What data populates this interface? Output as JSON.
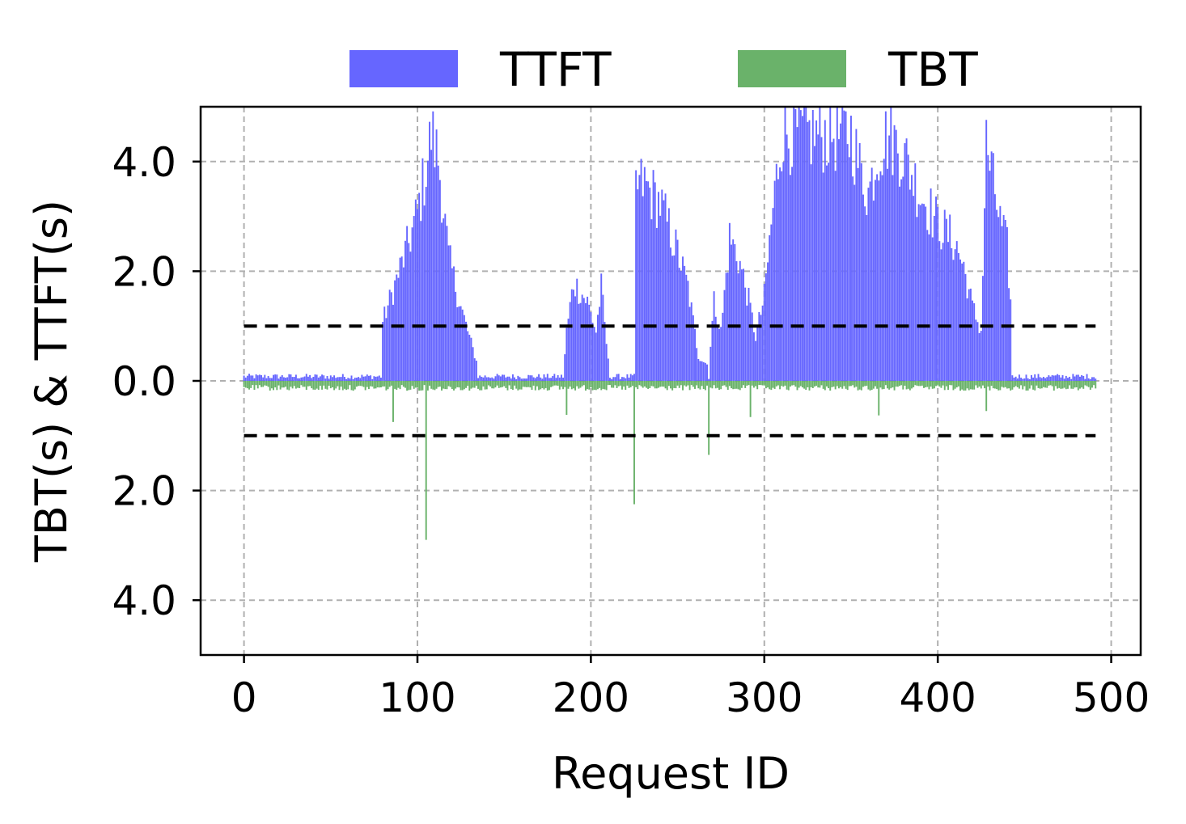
{
  "chart_data": {
    "type": "bar",
    "xlabel": "Request ID",
    "ylabel": "TBT(s) & TTFT(s)",
    "xlim": [
      -25,
      517
    ],
    "ylim": [
      -5,
      5
    ],
    "grid": true,
    "legend_position": "top-center",
    "x_ticks": [
      {
        "value": 0,
        "label": "0"
      },
      {
        "value": 100,
        "label": "100"
      },
      {
        "value": 200,
        "label": "200"
      },
      {
        "value": 300,
        "label": "300"
      },
      {
        "value": 400,
        "label": "400"
      },
      {
        "value": 500,
        "label": "500"
      }
    ],
    "y_ticks": [
      {
        "value": 4,
        "label": "4.0"
      },
      {
        "value": 2,
        "label": "2.0"
      },
      {
        "value": 0,
        "label": "0.0"
      },
      {
        "value": -2,
        "label": "2.0"
      },
      {
        "value": -4,
        "label": "4.0"
      }
    ],
    "reference_lines": [
      1.0,
      -1.0
    ],
    "series": [
      {
        "name": "TTFT",
        "color": "#6666ff",
        "direction": "up",
        "profile": [
          [
            0,
            0.08
          ],
          [
            79,
            0.08
          ],
          [
            80,
            1.2
          ],
          [
            95,
            2.8
          ],
          [
            100,
            3.4
          ],
          [
            105,
            4.3
          ],
          [
            108,
            5.0
          ],
          [
            112,
            4.5
          ],
          [
            118,
            2.5
          ],
          [
            125,
            1.5
          ],
          [
            134,
            0.4
          ],
          [
            136,
            0.07
          ],
          [
            184,
            0.07
          ],
          [
            186,
            1.0
          ],
          [
            190,
            2.0
          ],
          [
            198,
            1.6
          ],
          [
            203,
            1.0
          ],
          [
            206,
            1.9
          ],
          [
            210,
            0.4
          ],
          [
            211,
            0.07
          ],
          [
            225,
            0.07
          ],
          [
            226,
            3.9
          ],
          [
            230,
            4.0
          ],
          [
            240,
            3.6
          ],
          [
            250,
            2.6
          ],
          [
            256,
            1.9
          ],
          [
            262,
            0.5
          ],
          [
            268,
            0.3
          ],
          [
            271,
            1.6
          ],
          [
            275,
            1.0
          ],
          [
            280,
            2.9
          ],
          [
            285,
            2.5
          ],
          [
            290,
            1.8
          ],
          [
            295,
            0.9
          ],
          [
            300,
            1.7
          ],
          [
            305,
            3.5
          ],
          [
            310,
            5.0
          ],
          [
            350,
            5.0
          ],
          [
            355,
            4.3
          ],
          [
            360,
            3.8
          ],
          [
            366,
            4.7
          ],
          [
            372,
            5.0
          ],
          [
            380,
            4.6
          ],
          [
            390,
            3.8
          ],
          [
            400,
            3.2
          ],
          [
            410,
            2.8
          ],
          [
            415,
            2.3
          ],
          [
            420,
            1.5
          ],
          [
            425,
            1.0
          ],
          [
            428,
            4.8
          ],
          [
            432,
            4.0
          ],
          [
            436,
            3.2
          ],
          [
            440,
            2.7
          ],
          [
            442,
            1.6
          ],
          [
            443,
            0.08
          ],
          [
            491,
            0.08
          ]
        ]
      },
      {
        "name": "TBT",
        "color": "#6ab26a",
        "direction": "down",
        "baseline": 0.15,
        "spikes": [
          {
            "x": 86,
            "value": 0.75
          },
          {
            "x": 105,
            "value": 2.9
          },
          {
            "x": 186,
            "value": 0.62
          },
          {
            "x": 225,
            "value": 2.25
          },
          {
            "x": 268,
            "value": 1.35
          },
          {
            "x": 292,
            "value": 0.66
          },
          {
            "x": 366,
            "value": 0.63
          },
          {
            "x": 428,
            "value": 0.55
          }
        ]
      }
    ]
  }
}
